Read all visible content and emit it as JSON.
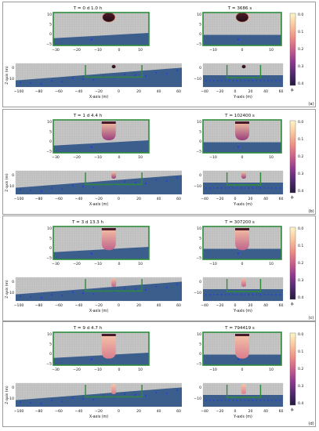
{
  "figure": {
    "panels": [
      {
        "id": "a",
        "left_title": "T = 0 d  1.0 h",
        "right_title": "T = 3686 s",
        "label": "(a)",
        "stage": 0
      },
      {
        "id": "b",
        "left_title": "T = 1 d  4.4 h",
        "right_title": "T = 102400 s",
        "label": "(b)",
        "stage": 1
      },
      {
        "id": "c",
        "left_title": "T = 3 d 13.3 h",
        "right_title": "T = 307200 s",
        "label": "(c)",
        "stage": 2
      },
      {
        "id": "d",
        "left_title": "T = 9 d  4.7 h",
        "right_title": "T = 794419 s",
        "label": "(d)",
        "stage": 3
      }
    ],
    "zoom_left_ticks": {
      "x": [
        "−30",
        "−20",
        "−10",
        "0",
        "10"
      ],
      "y": [
        "10",
        "5",
        "0",
        "−5"
      ]
    },
    "zoom_right_ticks": {
      "x": [
        "−10",
        "0",
        "10"
      ],
      "y": [
        "10",
        "5",
        "0",
        "−5"
      ]
    },
    "main_left_ticks": {
      "x": [
        "−100",
        "−80",
        "−60",
        "−40",
        "−20",
        "0",
        "20",
        "40",
        "60"
      ],
      "y": [
        "0",
        "−10"
      ]
    },
    "main_right_ticks": {
      "x": [
        "−40",
        "−20",
        "0",
        "20",
        "40",
        "60"
      ],
      "y": [
        "0",
        "−10"
      ]
    },
    "xlabel_left": "X-axis (m)",
    "xlabel_right": "Y-axis (m)",
    "ylabel": "Z-axis (m)",
    "colorbar": {
      "ticks": [
        "0.0",
        "0.1",
        "0.2",
        "0.3",
        "0.4"
      ],
      "label": "ϕᵢ",
      "colors": [
        "#fcf6c8",
        "#f8c7a0",
        "#ee8f84",
        "#c95f8a",
        "#8f3a8e",
        "#532a73",
        "#241a3c"
      ]
    },
    "colors": {
      "soil": "#3b5e8c",
      "air": "#c8c8c8",
      "frame": "#2e8b3a",
      "points": "#1f3fe0"
    }
  }
}
